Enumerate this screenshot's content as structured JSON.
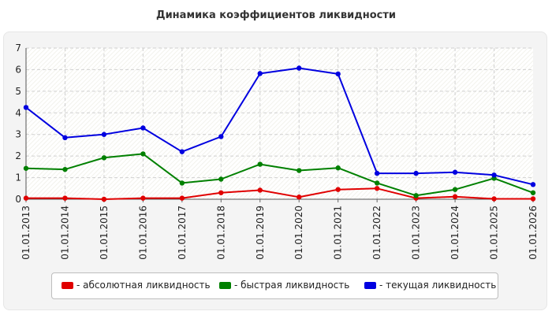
{
  "chart_data": {
    "type": "line",
    "title": "Динамика коэффициентов ликвидности",
    "categories": [
      "01.01.2013",
      "01.01.2014",
      "01.01.2015",
      "01.01.2016",
      "01.01.2017",
      "01.01.2018",
      "01.01.2019",
      "01.01.2020",
      "01.01.2021",
      "01.01.2022",
      "01.01.2023",
      "01.01.2024",
      "01.01.2025",
      "01.01.2026"
    ],
    "ylim": [
      0,
      7
    ],
    "yticks": [
      "0",
      "1",
      "2",
      "3",
      "4",
      "5",
      "6",
      "7"
    ],
    "grid": true,
    "legend_position": "bottom",
    "series": [
      {
        "name": "- абсолютная ликвидность",
        "color": "#e00000",
        "values": [
          0.05,
          0.05,
          0.0,
          0.05,
          0.05,
          0.3,
          0.42,
          0.1,
          0.45,
          0.5,
          0.05,
          0.12,
          0.02,
          0.02
        ]
      },
      {
        "name": "- быстрая ликвидность",
        "color": "#008000",
        "values": [
          1.43,
          1.38,
          1.92,
          2.1,
          0.75,
          0.93,
          1.62,
          1.33,
          1.45,
          0.75,
          0.17,
          0.45,
          0.97,
          0.3
        ]
      },
      {
        "name": "- текущая ликвидность",
        "color": "#0000e0",
        "values": [
          4.25,
          2.85,
          3.0,
          3.3,
          2.2,
          2.9,
          5.82,
          6.07,
          5.8,
          1.2,
          1.2,
          1.25,
          1.12,
          0.68
        ]
      }
    ]
  }
}
